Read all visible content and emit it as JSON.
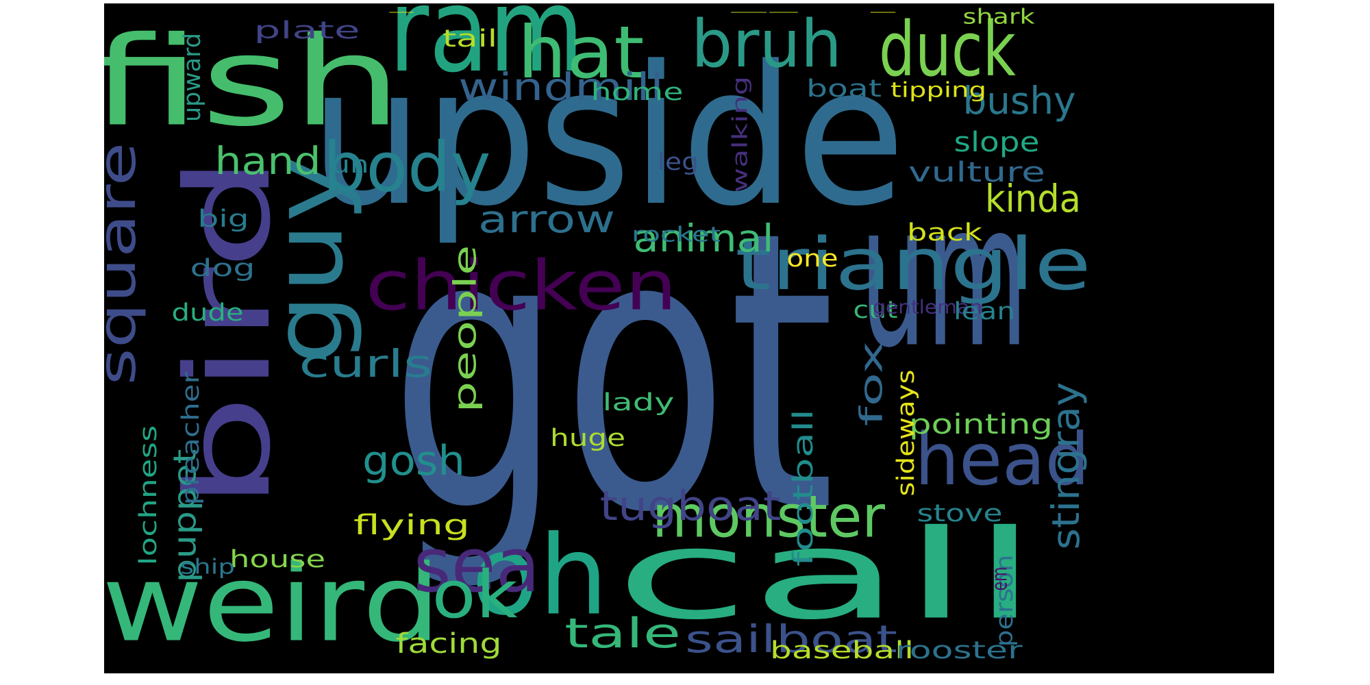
{
  "background": "#000000",
  "colormap": "viridis",
  "words": [
    {
      "text": "got",
      "color": "#3b5b8f"
    },
    {
      "text": "upside",
      "color": "#2f6b8e"
    },
    {
      "text": "um",
      "color": "#3b5b8f"
    },
    {
      "text": "ram",
      "color": "#22a37f"
    },
    {
      "text": "fish",
      "color": "#45bd6c"
    },
    {
      "text": "hat",
      "color": "#3fbc73"
    },
    {
      "text": "bruh",
      "color": "#2a9a87"
    },
    {
      "text": "duck",
      "color": "#7ad151"
    },
    {
      "text": "bird",
      "color": "#463f8c"
    },
    {
      "text": "guy",
      "color": "#2b7b8e"
    },
    {
      "text": "call",
      "color": "#28ae80"
    },
    {
      "text": "oh",
      "color": "#20a486"
    },
    {
      "text": "weird",
      "color": "#35b779"
    },
    {
      "text": "head",
      "color": "#3b528b"
    },
    {
      "text": "triangle",
      "color": "#2c738e"
    },
    {
      "text": "chicken",
      "color": "#440154"
    },
    {
      "text": "sea",
      "color": "#482979"
    },
    {
      "text": "body",
      "color": "#26828e"
    },
    {
      "text": "square",
      "color": "#3e4c8a"
    },
    {
      "text": "monster",
      "color": "#5ec962"
    },
    {
      "text": "ok",
      "color": "#2ab07f"
    },
    {
      "text": "sailboat",
      "color": "#3b528b"
    },
    {
      "text": "tugboat",
      "color": "#414487"
    },
    {
      "text": "tale",
      "color": "#35b779"
    },
    {
      "text": "stingray",
      "color": "#2c728e"
    },
    {
      "text": "gosh",
      "color": "#21908d"
    },
    {
      "text": "curls",
      "color": "#287d8e"
    },
    {
      "text": "animal",
      "color": "#3fbc73"
    },
    {
      "text": "kinda",
      "color": "#b5de2b"
    },
    {
      "text": "arrow",
      "color": "#2d708e"
    },
    {
      "text": "windmill",
      "color": "#33638d"
    },
    {
      "text": "bushy",
      "color": "#2a788e"
    },
    {
      "text": "hand",
      "color": "#4ac16d"
    },
    {
      "text": "puppet",
      "color": "#2a9a87"
    },
    {
      "text": "people",
      "color": "#7ad151"
    },
    {
      "text": "fox",
      "color": "#31688e"
    },
    {
      "text": "facing",
      "color": "#a0da39"
    },
    {
      "text": "baseball",
      "color": "#b5de2b"
    },
    {
      "text": "rooster",
      "color": "#2c728e"
    },
    {
      "text": "flying",
      "color": "#c8e020"
    },
    {
      "text": "pointing",
      "color": "#6ece58"
    },
    {
      "text": "vulture",
      "color": "#31688e"
    },
    {
      "text": "football",
      "color": "#228c8d"
    },
    {
      "text": "preacher",
      "color": "#2e6e8e"
    },
    {
      "text": "lochness",
      "color": "#21a685"
    },
    {
      "text": "person",
      "color": "#2d708e"
    },
    {
      "text": "slope",
      "color": "#22a884"
    },
    {
      "text": "plate",
      "color": "#414487"
    },
    {
      "text": "tail",
      "color": "#b5de2b"
    },
    {
      "text": "shark",
      "color": "#93d741"
    },
    {
      "text": "upward",
      "color": "#2a9a87"
    },
    {
      "text": "home",
      "color": "#2eb37c"
    },
    {
      "text": "boat",
      "color": "#2c738e"
    },
    {
      "text": "tipping",
      "color": "#dde318"
    },
    {
      "text": "walking",
      "color": "#472f7d"
    },
    {
      "text": "leg",
      "color": "#3b528b"
    },
    {
      "text": "uh",
      "color": "#26828e"
    },
    {
      "text": "big",
      "color": "#297b8e"
    },
    {
      "text": "dog",
      "color": "#2c728e"
    },
    {
      "text": "dude",
      "color": "#29af7f"
    },
    {
      "text": "back",
      "color": "#d2e21b"
    },
    {
      "text": "one",
      "color": "#fde725"
    },
    {
      "text": "rocket",
      "color": "#2a788e"
    },
    {
      "text": "cut",
      "color": "#35b779"
    },
    {
      "text": "gentleman",
      "color": "#46307e"
    },
    {
      "text": "lean",
      "color": "#26828e"
    },
    {
      "text": "lady",
      "color": "#3fbc73"
    },
    {
      "text": "huge",
      "color": "#addc30"
    },
    {
      "text": "sideways",
      "color": "#e5e419"
    },
    {
      "text": "stove",
      "color": "#25848e"
    },
    {
      "text": "house",
      "color": "#84d44b"
    },
    {
      "text": "ship",
      "color": "#2a788e"
    },
    {
      "text": "em",
      "color": "#471063"
    },
    {
      "text": "_",
      "color": "#d8e219"
    },
    {
      "text": "_",
      "color": "#b8de29"
    },
    {
      "text": "_",
      "color": "#c8e020"
    },
    {
      "text": "_",
      "color": "#d8e219"
    }
  ]
}
